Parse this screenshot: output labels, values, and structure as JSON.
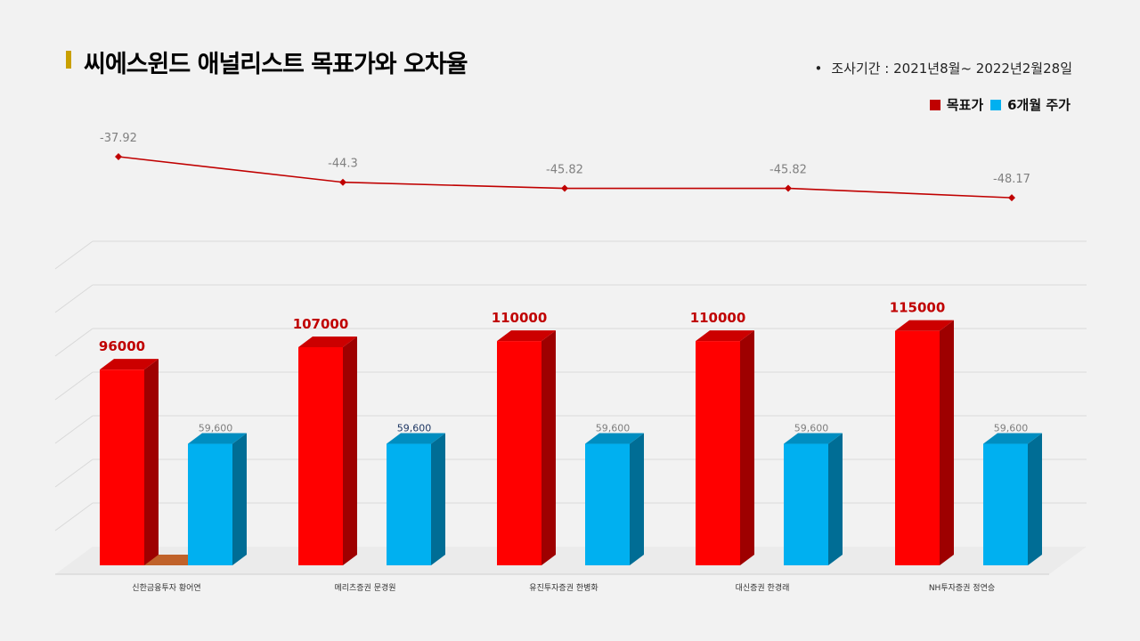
{
  "title": "씨에스윈드 애널리스트 목표가와 오차율",
  "period": {
    "bullet": "•",
    "text": "조사기간 : 2021년8월~ 2022년2월28일"
  },
  "legend": {
    "target": "목표가",
    "price": "6개월 주가"
  },
  "colors": {
    "target": "#ff0000",
    "price": "#00b0f0",
    "line": "#c00000",
    "title_accent": "#c9a000"
  },
  "chart_data": [
    {
      "type": "line",
      "categories": [
        "신한금융투자 황어연",
        "메리츠증권 문경원",
        "유진투자증권 한병화",
        "대신증권 한경래",
        "NH투자증권 정연승"
      ],
      "values": [
        -37.92,
        -44.3,
        -45.82,
        -45.82,
        -48.17
      ],
      "value_labels": [
        "-37.92",
        "-44.3",
        "-45.82",
        "-45.82",
        "-48.17"
      ]
    },
    {
      "type": "bar",
      "categories": [
        "신한금융투자 황어연",
        "메리츠증권 문경원",
        "유진투자증권 한병화",
        "대신증권 한경래",
        "NH투자증권 정연승"
      ],
      "series": [
        {
          "name": "목표가",
          "values": [
            96000,
            107000,
            110000,
            110000,
            115000
          ],
          "labels": [
            "96000",
            "107000",
            "110000",
            "110000",
            "115000"
          ]
        },
        {
          "name": "6개월 주가",
          "values": [
            59600,
            59600,
            59600,
            59600,
            59600
          ],
          "labels": [
            "59,600",
            "59,600",
            "59,600",
            "59,600",
            "59,600"
          ]
        }
      ],
      "ylim": [
        0,
        120000
      ],
      "grid": true,
      "style": "3d"
    }
  ]
}
